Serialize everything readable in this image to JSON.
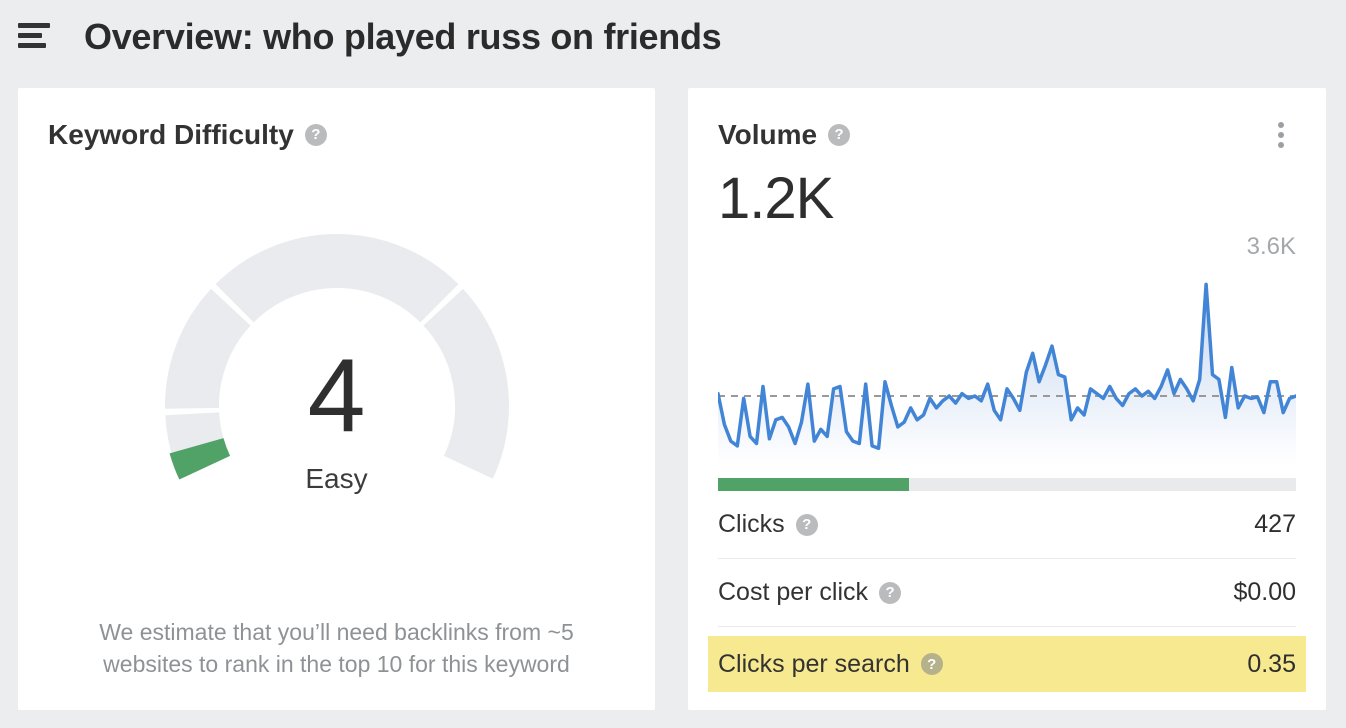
{
  "header": {
    "title": "Overview: who played russ on friends"
  },
  "kd_card": {
    "title": "Keyword Difficulty",
    "value": "4",
    "difficulty_label": "Easy",
    "footnote_line1": "We estimate that you’ll need backlinks from ~5",
    "footnote_line2": "websites to rank in the top 10 for this keyword"
  },
  "volume_card": {
    "title": "Volume",
    "value": "1.2K",
    "chart_max_label": "3.6K",
    "metrics": [
      {
        "label": "Clicks",
        "value": "427",
        "highlight": false
      },
      {
        "label": "Cost per click",
        "value": "$0.00",
        "highlight": false
      },
      {
        "label": "Clicks per search",
        "value": "0.35",
        "highlight": true
      }
    ]
  },
  "colors": {
    "page_bg": "#ecedef",
    "card_bg": "#ffffff",
    "accent_green": "#51a267",
    "accent_blue": "#4285d6",
    "highlight_yellow": "#f6e98f",
    "gauge_track": "#e9ebee",
    "dashed_line": "#999999",
    "muted_text": "#8f9295"
  },
  "chart_data": [
    {
      "type": "gauge",
      "title": "Keyword Difficulty",
      "value": 4,
      "min": 0,
      "max": 100,
      "label": "Easy",
      "start_angle": -115,
      "sweep": 230,
      "segments": [
        {
          "name": "easy",
          "from": 0,
          "to": 10
        },
        {
          "name": "medium",
          "from": 10,
          "to": 30
        },
        {
          "name": "hard",
          "from": 30,
          "to": 70
        },
        {
          "name": "super-hard",
          "from": 70,
          "to": 100
        }
      ],
      "track_color": "#e9ebee",
      "value_color": "#51a267"
    },
    {
      "type": "area",
      "title": "Search volume trend (weekly)",
      "ylim": [
        0,
        3600
      ],
      "max_label": "3.6K",
      "avg_line_value": 1200,
      "line_color": "#4285d6",
      "grid": "dashed-average-only",
      "legend": "none",
      "values": [
        1250,
        600,
        250,
        150,
        1150,
        350,
        200,
        1400,
        300,
        700,
        750,
        550,
        200,
        650,
        1450,
        250,
        500,
        350,
        1350,
        1400,
        450,
        250,
        200,
        1450,
        150,
        100,
        1500,
        1000,
        550,
        650,
        950,
        700,
        800,
        1150,
        950,
        1100,
        1200,
        1050,
        1250,
        1150,
        1200,
        1100,
        1450,
        900,
        700,
        1350,
        1150,
        900,
        1700,
        2100,
        1500,
        1850,
        2250,
        1650,
        1600,
        700,
        950,
        800,
        1350,
        1250,
        1150,
        1400,
        1150,
        1000,
        1250,
        1350,
        1200,
        1300,
        1150,
        1400,
        1750,
        1250,
        1550,
        1350,
        1100,
        1550,
        3550,
        1650,
        1550,
        750,
        1800,
        950,
        1200,
        1150,
        1180,
        850,
        1500,
        1500,
        850,
        1150,
        1200
      ]
    },
    {
      "type": "bar",
      "title": "Volume progress bar",
      "value_pct": 33,
      "color": "#51a267"
    }
  ]
}
